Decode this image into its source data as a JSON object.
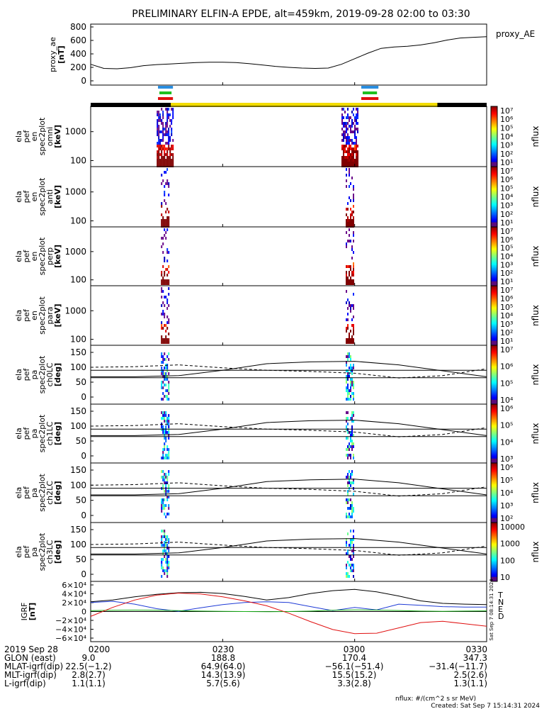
{
  "title": "PRELIMINARY ELFIN-A EPDE, alt=459km, 2019-09-28 02:00 to 03:30",
  "colors": {
    "axis": "#000000",
    "bx": "#1f3bd6",
    "by": "#19b019",
    "bz": "#e01010",
    "science_zone": "#f2dc00",
    "night": "#000000"
  },
  "panels": [
    {
      "key": "proxy_ae",
      "ylabel": [
        "proxy_ae",
        "[nT]"
      ],
      "right_label": "proxy_AE",
      "ticks": [
        "800",
        "600",
        "400",
        "200",
        "0"
      ]
    },
    {
      "key": "omni",
      "ylabel": [
        "ela",
        "pef",
        "en",
        "spec2plot",
        "omni",
        "[keV]"
      ],
      "ticks": [
        "1000",
        "100"
      ],
      "cbar_label": "nflux"
    },
    {
      "key": "anti",
      "ylabel": [
        "ela",
        "pef",
        "en",
        "spec2plot",
        "anti",
        "[keV]"
      ],
      "ticks": [
        "1000",
        "100"
      ],
      "cbar_label": "nflux"
    },
    {
      "key": "perp",
      "ylabel": [
        "ela",
        "pef",
        "en",
        "spec2plot",
        "perp",
        "[keV]"
      ],
      "ticks": [
        "1000",
        "100"
      ],
      "cbar_label": "nflux"
    },
    {
      "key": "para",
      "ylabel": [
        "ela",
        "pef",
        "en",
        "spec2plot",
        "para",
        "[keV]"
      ],
      "ticks": [
        "1000",
        "100"
      ],
      "cbar_label": "nflux"
    },
    {
      "key": "ch0LC",
      "ylabel": [
        "ela",
        "pef",
        "pa",
        "spec2plot",
        "ch0LC",
        "[deg]"
      ],
      "ticks": [
        "150",
        "100",
        "50",
        "0"
      ],
      "cbar_label": "nflux"
    },
    {
      "key": "ch1LC",
      "ylabel": [
        "ela",
        "pef",
        "pa",
        "spec2plot",
        "ch1LC",
        "[deg]"
      ],
      "ticks": [
        "150",
        "100",
        "50",
        "0"
      ],
      "cbar_label": "nflux"
    },
    {
      "key": "ch2LC",
      "ylabel": [
        "ela",
        "pef",
        "pa",
        "spec2plot",
        "ch2LC",
        "[deg]"
      ],
      "ticks": [
        "150",
        "100",
        "50",
        "0"
      ],
      "cbar_label": "nflux"
    },
    {
      "key": "ch3LC",
      "ylabel": [
        "ela",
        "pef",
        "pa",
        "spec2plot",
        "ch3LC",
        "[deg]"
      ],
      "ticks": [
        "150",
        "100",
        "50",
        "0"
      ],
      "cbar_label": "nflux"
    },
    {
      "key": "igrf",
      "ylabel": [
        "IGRF",
        "[nT]"
      ],
      "ticks": [
        "6×10⁴",
        "4×10⁴",
        "2×10⁴",
        "0",
        "−2×10⁴",
        "−4×10⁴",
        "−6×10⁴"
      ],
      "legend": [
        "T",
        "N",
        "E",
        "D"
      ]
    }
  ],
  "colorbar_ticks": {
    "energy": [
      "10⁷",
      "10⁶",
      "10⁵",
      "10⁴",
      "10³",
      "10²",
      "10¹"
    ],
    "ch0LC": [
      "10⁷",
      "10⁶",
      "10⁵",
      "10⁴"
    ],
    "ch1LC": [
      "10⁶",
      "10⁵",
      "10⁴",
      "10³"
    ],
    "ch2LC": [
      "10⁶",
      "10⁵",
      "10⁴",
      "10³",
      "10²"
    ],
    "ch3LC": [
      "10000",
      "1000",
      "100",
      "10"
    ]
  },
  "timestamp_vertical": "Sat Sep  7 08:14:31 2024",
  "footer": {
    "rows": [
      {
        "label": "2019 Sep 28",
        "values": [
          "0200",
          "0230",
          "0300",
          "0330"
        ]
      },
      {
        "label": "GLON (east)",
        "values": [
          "9.0",
          "188.8",
          "170.4",
          "347.3"
        ]
      },
      {
        "label": "MLAT-igrf(dip)",
        "values": [
          "22.5(−1.2)",
          "64.9(64.0)",
          "−56.1(−51.4)",
          "−31.4(−11.7)"
        ]
      },
      {
        "label": "MLT-igrf(dip)",
        "values": [
          "2.8(2.7)",
          "14.3(13.9)",
          "15.5(15.2)",
          "2.5(2.6)"
        ]
      },
      {
        "label": "L-igrf(dip)",
        "values": [
          "1.1(1.1)",
          "5.7(5.6)",
          "3.3(2.8)",
          "1.3(1.1)"
        ]
      }
    ],
    "units": "nflux: #/(cm^2 s sr MeV)",
    "created": "Created: Sat Sep  7 15:14:31 2024"
  },
  "chart_data": {
    "type": "line",
    "x_range": [
      "02:00",
      "03:30"
    ],
    "x_ticks": [
      "0200",
      "0230",
      "0300",
      "0330"
    ],
    "proxy_ae": {
      "ylim": [
        0,
        800
      ],
      "x_min": [
        0,
        3,
        6,
        9,
        12,
        15,
        18,
        21,
        24,
        27,
        30,
        33,
        36,
        39,
        42,
        45,
        48,
        51,
        54,
        57,
        60,
        63,
        66,
        69,
        72,
        75,
        78,
        81,
        84,
        87,
        90
      ],
      "values": [
        260,
        200,
        195,
        210,
        240,
        255,
        265,
        275,
        285,
        290,
        290,
        285,
        270,
        250,
        230,
        215,
        205,
        200,
        205,
        260,
        340,
        420,
        490,
        510,
        520,
        540,
        570,
        610,
        640,
        650,
        660
      ]
    },
    "igrf": {
      "ylim": [
        -65000,
        65000
      ],
      "x_min": [
        0,
        5,
        10,
        15,
        20,
        25,
        30,
        35,
        40,
        45,
        50,
        55,
        60,
        65,
        70,
        75,
        80,
        85,
        90
      ],
      "series": [
        {
          "name": "T",
          "values": [
            24000,
            28000,
            36000,
            42000,
            46000,
            47000,
            44000,
            37000,
            28000,
            34000,
            44000,
            51000,
            54000,
            48000,
            38000,
            26000,
            20000,
            18000,
            17000
          ]
        },
        {
          "name": "N",
          "values": [
            22000,
            25000,
            18000,
            7000,
            500,
            9000,
            17000,
            22000,
            24000,
            22000,
            12000,
            2000,
            10000,
            4000,
            18000,
            15000,
            12000,
            11000,
            11000
          ]
        },
        {
          "name": "E",
          "values": [
            2000,
            3000,
            3500,
            3000,
            2000,
            1000,
            500,
            0,
            -500,
            0,
            1000,
            3000,
            4000,
            3500,
            2500,
            1000,
            500,
            1000,
            1500
          ]
        },
        {
          "name": "D",
          "values": [
            -12000,
            10000,
            28000,
            40000,
            45000,
            43000,
            36000,
            26000,
            14000,
            -4000,
            -25000,
            -44000,
            -54000,
            -53000,
            -40000,
            -27000,
            -24000,
            -30000,
            -36000
          ]
        }
      ]
    },
    "pitch_angle_lines": {
      "x_min": [
        0,
        10,
        20,
        30,
        40,
        50,
        60,
        70,
        80,
        90
      ],
      "solid_upper": [
        68,
        68,
        72,
        90,
        112,
        118,
        120,
        108,
        88,
        68
      ],
      "dashed_upper": [
        100,
        102,
        108,
        98,
        90,
        86,
        80,
        64,
        72,
        95
      ],
      "solid_flat": [
        90,
        90,
        90,
        90,
        90,
        90,
        90,
        90,
        90,
        90
      ],
      "solid_lower": [
        65,
        65,
        65,
        65,
        65,
        65,
        65,
        65,
        65,
        65
      ]
    },
    "bursts_min": [
      [
        15,
        19
      ],
      [
        57,
        61
      ]
    ]
  }
}
